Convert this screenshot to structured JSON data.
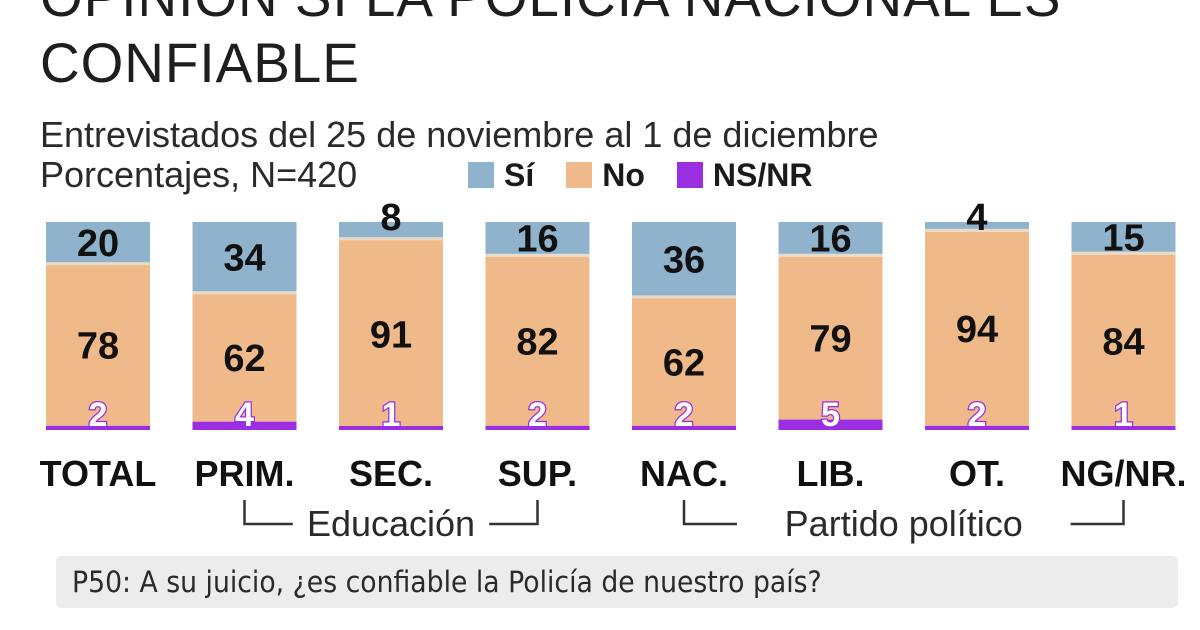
{
  "title": "OPINIÓN SI LA POLICÍA NACIONAL ES CONFIABLE",
  "subtitle": "Entrevistados del 25 de noviembre al 1 de diciembre",
  "units": "Porcentajes, N=420",
  "legend": [
    {
      "label": "Sí",
      "color": "#8fb3cc"
    },
    {
      "label": "No",
      "color": "#f0b98a"
    },
    {
      "label": "NS/NR",
      "color": "#9a2ee0"
    }
  ],
  "question": "P50: A su juicio, ¿es confiable la Policía de nuestro país?",
  "chart_data": {
    "type": "bar",
    "stacked": true,
    "categories": [
      "TOTAL",
      "PRIM.",
      "SEC.",
      "SUP.",
      "NAC.",
      "LIB.",
      "OT.",
      "NG/NR."
    ],
    "series": [
      {
        "name": "Sí",
        "color": "#8fb3cc",
        "values": [
          20,
          34,
          8,
          16,
          36,
          16,
          4,
          15
        ]
      },
      {
        "name": "No",
        "color": "#f0b98a",
        "values": [
          78,
          62,
          91,
          82,
          62,
          79,
          94,
          84
        ]
      },
      {
        "name": "NS/NR",
        "color": "#9a2ee0",
        "values": [
          2,
          4,
          1,
          2,
          2,
          5,
          2,
          1
        ]
      }
    ],
    "groups": [
      {
        "label": "Educación",
        "categories": [
          "PRIM.",
          "SEC.",
          "SUP."
        ]
      },
      {
        "label": "Partido político",
        "categories": [
          "NAC.",
          "LIB.",
          "OT.",
          "NG/NR."
        ]
      }
    ],
    "ylim": [
      0,
      100
    ],
    "grid": false,
    "legend_position": "top"
  }
}
